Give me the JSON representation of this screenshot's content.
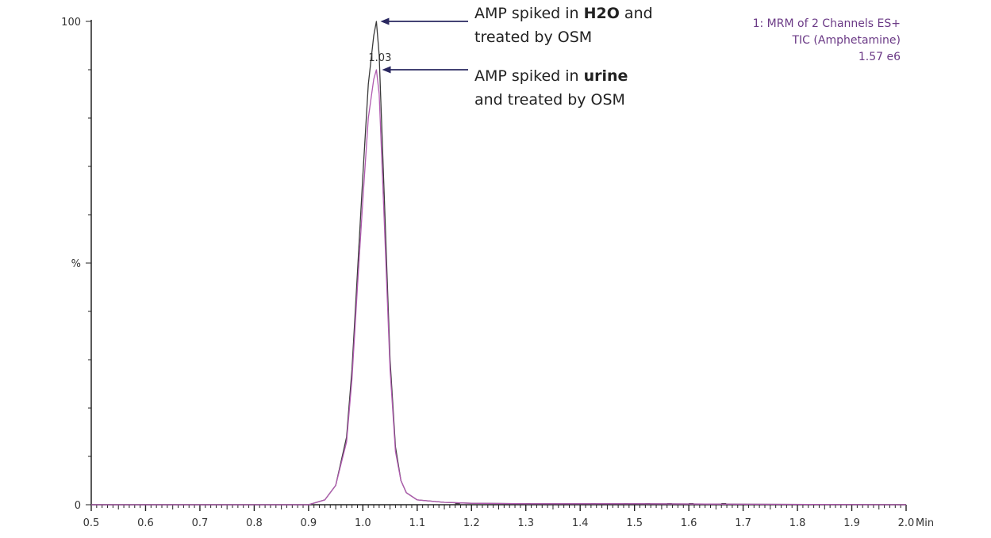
{
  "info": {
    "line1": "1: MRM of 2 Channels ES+",
    "line2": "TIC (Amphetamine)",
    "line3": "1.57 e6",
    "color": "#6b3a86"
  },
  "annotations": [
    {
      "pre": "AMP spiked in ",
      "bold": "H2O",
      "post": " and",
      "line2": "treated by OSM"
    },
    {
      "pre": "AMP spiked in ",
      "bold": "urine",
      "post": "",
      "line2": "and treated by OSM"
    }
  ],
  "chart_data": {
    "type": "line",
    "xlabel": "Min",
    "ylabel": "%",
    "xlim": [
      0.5,
      2.0
    ],
    "ylim": [
      0,
      100
    ],
    "x_ticks": [
      "0.5",
      "0.6",
      "0.7",
      "0.8",
      "0.9",
      "1.0",
      "1.1",
      "1.2",
      "1.3",
      "1.4",
      "1.5",
      "1.6",
      "1.7",
      "1.8",
      "1.9",
      "2.0"
    ],
    "y_ticks": [
      "0",
      "%",
      "100"
    ],
    "peak_label": "1.03",
    "series": [
      {
        "color": "#3a3a3a",
        "x": [
          0.5,
          0.9,
          0.93,
          0.95,
          0.97,
          0.98,
          0.99,
          1.0,
          1.01,
          1.02,
          1.025,
          1.03,
          1.04,
          1.05,
          1.06,
          1.07,
          1.08,
          1.1,
          1.15,
          1.2,
          1.3,
          1.5,
          1.7,
          2.0
        ],
        "y": [
          0,
          0,
          1,
          4,
          14,
          28,
          48,
          68,
          87,
          97,
          100,
          93,
          62,
          30,
          12,
          5,
          2.5,
          1,
          0.5,
          0.3,
          0.2,
          0.2,
          0.1,
          0
        ]
      },
      {
        "color": "#b05ab0",
        "x": [
          0.5,
          0.9,
          0.93,
          0.95,
          0.97,
          0.98,
          0.99,
          1.0,
          1.01,
          1.02,
          1.025,
          1.03,
          1.04,
          1.05,
          1.06,
          1.07,
          1.08,
          1.1,
          1.15,
          1.2,
          1.3,
          1.5,
          1.7,
          2.0
        ],
        "y": [
          0,
          0,
          1,
          4,
          13,
          26,
          45,
          63,
          80,
          88,
          90,
          85,
          57,
          28,
          11,
          5,
          2.5,
          1,
          0.5,
          0.3,
          0.2,
          0.2,
          0.1,
          0
        ]
      }
    ]
  }
}
